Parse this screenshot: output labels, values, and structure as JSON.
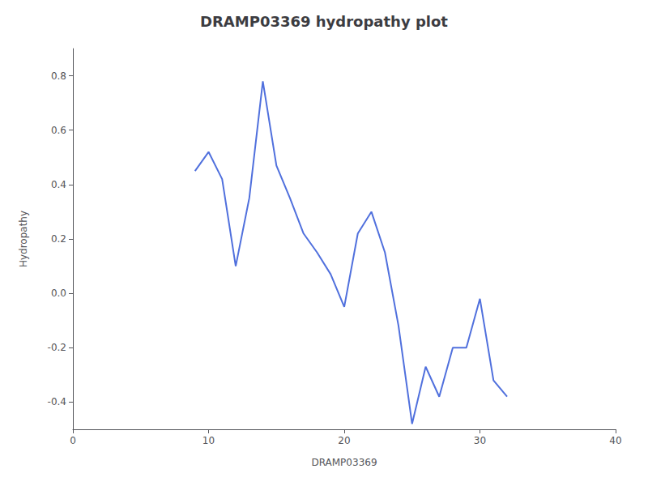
{
  "chart_data": {
    "type": "line",
    "title": "DRAMP03369 hydropathy plot",
    "xlabel": "DRAMP03369",
    "ylabel": "Hydropathy",
    "x": [
      9,
      10,
      11,
      12,
      13,
      14,
      15,
      16,
      17,
      18,
      19,
      20,
      21,
      22,
      23,
      24,
      25,
      26,
      27,
      28,
      29,
      30,
      31,
      32
    ],
    "values": [
      0.45,
      0.52,
      0.42,
      0.1,
      0.35,
      0.78,
      0.47,
      0.35,
      0.22,
      0.15,
      0.07,
      -0.05,
      0.22,
      0.3,
      0.15,
      -0.12,
      -0.48,
      -0.27,
      -0.38,
      -0.2,
      -0.2,
      -0.02,
      -0.32,
      -0.38
    ],
    "xlim": [
      0,
      40
    ],
    "xticks": [
      0,
      10,
      20,
      30,
      40
    ],
    "ylim": [
      -0.5,
      0.9
    ],
    "yticks": [
      -0.4,
      -0.2,
      {
        "value": 0,
        "label": "0.0"
      },
      0.2,
      0.4,
      0.6,
      0.8
    ],
    "grid": false
  }
}
